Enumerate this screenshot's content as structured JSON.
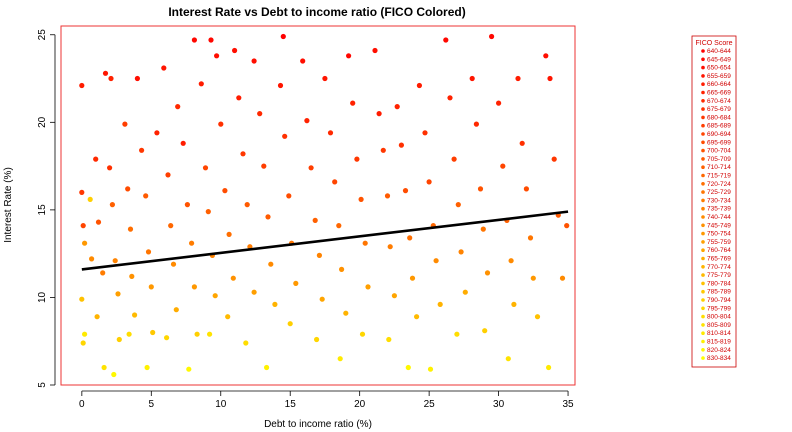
{
  "chart_data": {
    "type": "scatter",
    "title": "Interest Rate vs Debt to income ratio (FICO Colored)",
    "xlabel": "Debt to income ratio (%)",
    "ylabel": "Interest Rate (%)",
    "xlim": [
      -1.5,
      35.5
    ],
    "ylim": [
      5,
      25.5
    ],
    "x_ticks": [
      0,
      5,
      10,
      15,
      20,
      25,
      30,
      35
    ],
    "y_ticks": [
      5,
      10,
      15,
      20,
      25
    ],
    "grid": false,
    "legend_placement": "right",
    "regression_line": {
      "x": [
        0,
        35
      ],
      "y": [
        11.6,
        14.9
      ],
      "color": "#000000"
    },
    "legend": {
      "title": "FICO Score",
      "entries": [
        "640-644",
        "645-649",
        "650-654",
        "655-659",
        "660-664",
        "665-669",
        "670-674",
        "675-679",
        "680-684",
        "685-689",
        "690-694",
        "695-699",
        "700-704",
        "705-709",
        "710-714",
        "715-719",
        "720-724",
        "725-729",
        "730-734",
        "735-739",
        "740-744",
        "745-749",
        "750-754",
        "755-759",
        "760-764",
        "765-769",
        "770-774",
        "775-779",
        "780-784",
        "785-789",
        "790-794",
        "795-799",
        "800-804",
        "805-809",
        "810-814",
        "815-819",
        "820-824",
        "830-834"
      ]
    },
    "color_scale": {
      "low": "#ff0000",
      "high": "#ffff00",
      "border": "#ee3333"
    },
    "series": [
      {
        "points": [
          [
            0.0,
            22.1,
            4
          ],
          [
            0.0,
            16.0,
            8
          ],
          [
            0.1,
            14.1,
            10
          ],
          [
            0.2,
            13.1,
            22
          ],
          [
            0.0,
            9.9,
            28
          ],
          [
            0.2,
            7.9,
            34
          ],
          [
            0.1,
            7.4,
            31
          ],
          [
            0.6,
            15.6,
            30
          ],
          [
            0.7,
            12.2,
            20
          ],
          [
            1.0,
            17.9,
            6
          ],
          [
            1.2,
            14.3,
            12
          ],
          [
            1.5,
            11.4,
            18
          ],
          [
            1.1,
            8.9,
            26
          ],
          [
            1.6,
            6.0,
            33
          ],
          [
            1.7,
            22.8,
            3
          ],
          [
            2.0,
            17.4,
            7
          ],
          [
            2.2,
            15.3,
            14
          ],
          [
            2.4,
            12.1,
            19
          ],
          [
            2.6,
            10.2,
            23
          ],
          [
            2.7,
            7.6,
            30
          ],
          [
            2.3,
            5.6,
            36
          ],
          [
            2.1,
            22.5,
            5
          ],
          [
            3.1,
            19.9,
            9
          ],
          [
            3.3,
            16.2,
            11
          ],
          [
            3.5,
            13.9,
            16
          ],
          [
            3.6,
            11.2,
            21
          ],
          [
            3.8,
            9.0,
            27
          ],
          [
            3.4,
            7.9,
            32
          ],
          [
            4.0,
            22.5,
            2
          ],
          [
            4.3,
            18.4,
            8
          ],
          [
            4.6,
            15.8,
            13
          ],
          [
            4.8,
            12.6,
            17
          ],
          [
            5.0,
            10.6,
            22
          ],
          [
            5.1,
            8.0,
            29
          ],
          [
            4.7,
            6.0,
            35
          ],
          [
            5.4,
            19.4,
            5
          ],
          [
            5.9,
            23.1,
            3
          ],
          [
            6.2,
            17.0,
            9
          ],
          [
            6.4,
            14.1,
            15
          ],
          [
            6.6,
            11.9,
            20
          ],
          [
            6.8,
            9.3,
            25
          ],
          [
            6.1,
            7.7,
            31
          ],
          [
            6.9,
            20.9,
            6
          ],
          [
            7.3,
            18.8,
            4
          ],
          [
            7.6,
            15.3,
            12
          ],
          [
            7.9,
            13.1,
            18
          ],
          [
            8.1,
            10.6,
            22
          ],
          [
            8.3,
            7.9,
            30
          ],
          [
            7.7,
            5.9,
            36
          ],
          [
            8.1,
            24.7,
            1
          ],
          [
            8.6,
            22.2,
            4
          ],
          [
            8.9,
            17.4,
            10
          ],
          [
            9.1,
            14.9,
            14
          ],
          [
            9.4,
            12.4,
            19
          ],
          [
            9.6,
            10.1,
            24
          ],
          [
            9.2,
            7.9,
            33
          ],
          [
            9.3,
            24.7,
            1
          ],
          [
            9.7,
            23.8,
            2
          ],
          [
            10.0,
            19.9,
            7
          ],
          [
            10.3,
            16.1,
            11
          ],
          [
            10.6,
            13.6,
            16
          ],
          [
            10.9,
            11.1,
            21
          ],
          [
            10.5,
            8.9,
            27
          ],
          [
            11.0,
            24.1,
            2
          ],
          [
            11.3,
            21.4,
            4
          ],
          [
            11.6,
            18.2,
            8
          ],
          [
            11.9,
            15.3,
            13
          ],
          [
            12.1,
            12.9,
            18
          ],
          [
            12.4,
            10.3,
            23
          ],
          [
            11.8,
            7.4,
            32
          ],
          [
            12.4,
            23.5,
            2
          ],
          [
            12.8,
            20.5,
            6
          ],
          [
            13.1,
            17.5,
            9
          ],
          [
            13.4,
            14.6,
            13
          ],
          [
            13.6,
            11.9,
            20
          ],
          [
            13.9,
            9.6,
            26
          ],
          [
            13.3,
            6.0,
            35
          ],
          [
            14.5,
            24.9,
            0
          ],
          [
            14.3,
            22.1,
            3
          ],
          [
            14.6,
            19.2,
            7
          ],
          [
            14.9,
            15.8,
            11
          ],
          [
            15.1,
            13.1,
            17
          ],
          [
            15.4,
            10.8,
            22
          ],
          [
            15.0,
            8.5,
            30
          ],
          [
            15.9,
            23.5,
            2
          ],
          [
            16.2,
            20.1,
            5
          ],
          [
            16.5,
            17.4,
            9
          ],
          [
            16.8,
            14.4,
            14
          ],
          [
            17.1,
            12.4,
            19
          ],
          [
            17.3,
            9.9,
            24
          ],
          [
            16.9,
            7.6,
            31
          ],
          [
            17.5,
            22.5,
            3
          ],
          [
            17.9,
            19.4,
            6
          ],
          [
            18.2,
            16.6,
            10
          ],
          [
            18.5,
            14.1,
            15
          ],
          [
            18.7,
            11.6,
            21
          ],
          [
            19.0,
            9.1,
            26
          ],
          [
            18.6,
            6.5,
            34
          ],
          [
            19.2,
            23.8,
            1
          ],
          [
            19.5,
            21.1,
            5
          ],
          [
            19.8,
            17.9,
            8
          ],
          [
            20.1,
            15.6,
            12
          ],
          [
            20.4,
            13.1,
            17
          ],
          [
            20.6,
            10.6,
            23
          ],
          [
            20.2,
            7.9,
            31
          ],
          [
            21.1,
            24.1,
            2
          ],
          [
            21.4,
            20.5,
            4
          ],
          [
            21.7,
            18.4,
            8
          ],
          [
            22.0,
            15.8,
            13
          ],
          [
            22.2,
            12.9,
            18
          ],
          [
            22.5,
            10.1,
            24
          ],
          [
            22.1,
            7.6,
            32
          ],
          [
            22.7,
            20.9,
            5
          ],
          [
            23.0,
            18.7,
            7
          ],
          [
            23.3,
            16.1,
            11
          ],
          [
            23.6,
            13.4,
            16
          ],
          [
            23.8,
            11.1,
            22
          ],
          [
            24.1,
            8.9,
            27
          ],
          [
            23.5,
            6.0,
            36
          ],
          [
            24.3,
            22.1,
            4
          ],
          [
            24.7,
            19.4,
            7
          ],
          [
            25.0,
            16.6,
            10
          ],
          [
            25.3,
            14.1,
            15
          ],
          [
            25.5,
            12.1,
            20
          ],
          [
            25.8,
            9.6,
            26
          ],
          [
            25.1,
            5.9,
            35
          ],
          [
            26.2,
            24.7,
            1
          ],
          [
            26.5,
            21.4,
            5
          ],
          [
            26.8,
            17.9,
            9
          ],
          [
            27.1,
            15.3,
            14
          ],
          [
            27.3,
            12.6,
            19
          ],
          [
            27.6,
            10.3,
            25
          ],
          [
            27.0,
            7.9,
            32
          ],
          [
            28.1,
            22.5,
            3
          ],
          [
            28.4,
            19.9,
            6
          ],
          [
            28.7,
            16.2,
            12
          ],
          [
            28.9,
            13.9,
            17
          ],
          [
            29.2,
            11.4,
            21
          ],
          [
            29.5,
            24.9,
            1
          ],
          [
            29.0,
            8.1,
            30
          ],
          [
            30.0,
            21.1,
            5
          ],
          [
            30.3,
            17.5,
            10
          ],
          [
            30.6,
            14.4,
            14
          ],
          [
            30.9,
            12.1,
            20
          ],
          [
            31.1,
            9.6,
            26
          ],
          [
            30.7,
            6.5,
            33
          ],
          [
            31.4,
            22.5,
            4
          ],
          [
            31.7,
            18.8,
            7
          ],
          [
            32.0,
            16.2,
            11
          ],
          [
            32.3,
            13.4,
            17
          ],
          [
            32.5,
            11.1,
            22
          ],
          [
            32.8,
            8.9,
            28
          ],
          [
            33.4,
            23.8,
            2
          ],
          [
            33.7,
            22.5,
            3
          ],
          [
            34.0,
            17.9,
            8
          ],
          [
            34.3,
            14.7,
            13
          ],
          [
            34.6,
            11.1,
            20
          ],
          [
            34.9,
            14.1,
            12
          ],
          [
            33.6,
            6.0,
            34
          ]
        ]
      }
    ]
  }
}
